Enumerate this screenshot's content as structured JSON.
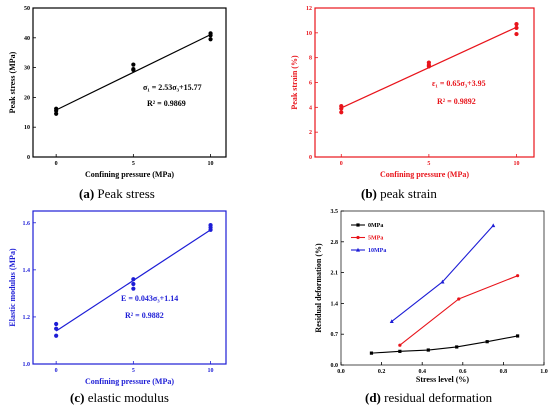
{
  "captions": [
    {
      "letter": "(a)",
      "text": "Peak stress"
    },
    {
      "letter": "(b)",
      "text": "peak strain"
    },
    {
      "letter": "(c)",
      "text": "elastic modulus"
    },
    {
      "letter": "(d)",
      "text": "residual deformation"
    }
  ],
  "chart_data": [
    {
      "type": "scatter",
      "color": "#000000",
      "xlabel": "Confining pressure (MPa)",
      "ylabel": "Peak stress (MPa)",
      "xticks": [
        "0",
        "5",
        "10"
      ],
      "yticks": [
        "0",
        "10",
        "20",
        "30",
        "40",
        "50"
      ],
      "xlim": [
        -1.5,
        11
      ],
      "ylim": [
        0,
        50
      ],
      "points": [
        [
          0,
          14.5
        ],
        [
          0,
          15.5
        ],
        [
          0,
          16.2
        ],
        [
          5,
          29.2
        ],
        [
          5,
          29.5
        ],
        [
          5,
          31.0
        ],
        [
          10,
          39.5
        ],
        [
          10,
          40.8
        ],
        [
          10,
          41.5
        ]
      ],
      "fit": {
        "slope": 2.53,
        "intercept": 15.77
      },
      "equation": "σ₁ = 2.53σ₃+15.77",
      "r2": "R² = 0.9869"
    },
    {
      "type": "scatter",
      "color": "#e8141b",
      "xlabel": "Confining pressure (MPa)",
      "ylabel": "Peak strain (%)",
      "xticks": [
        "0",
        "5",
        "10"
      ],
      "yticks": [
        "0",
        "2",
        "4",
        "6",
        "8",
        "10",
        "12"
      ],
      "xlim": [
        -1.5,
        11
      ],
      "ylim": [
        0,
        12
      ],
      "points": [
        [
          0,
          3.6
        ],
        [
          0,
          3.9
        ],
        [
          0,
          4.1
        ],
        [
          5,
          7.3
        ],
        [
          5,
          7.4
        ],
        [
          5,
          7.6
        ],
        [
          10,
          9.9
        ],
        [
          10,
          10.4
        ],
        [
          10,
          10.7
        ]
      ],
      "fit": {
        "slope": 0.65,
        "intercept": 3.95
      },
      "equation": "ε₁ = 0.65σ₃+3.95",
      "r2": "R² = 0.9892"
    },
    {
      "type": "scatter",
      "color": "#1d1dd6",
      "xlabel": "Confining pressure (MPa)",
      "ylabel": "Elastic modulus (MPa)",
      "xticks": [
        "0",
        "5",
        "10"
      ],
      "yticks": [
        "1.0",
        "1.2",
        "1.4",
        "1.6"
      ],
      "xlim": [
        -1.5,
        11
      ],
      "ylim": [
        1.0,
        1.65
      ],
      "points": [
        [
          0,
          1.12
        ],
        [
          0,
          1.15
        ],
        [
          0,
          1.17
        ],
        [
          5,
          1.32
        ],
        [
          5,
          1.34
        ],
        [
          5,
          1.36
        ],
        [
          10,
          1.57
        ],
        [
          10,
          1.58
        ],
        [
          10,
          1.59
        ]
      ],
      "fit": {
        "slope": 0.043,
        "intercept": 1.14
      },
      "equation": "E = 0.043σ₃+1.14",
      "r2": "R² = 0.9882"
    },
    {
      "type": "line",
      "xlabel": "Stress level (%)",
      "ylabel": "Residual deformation (%)",
      "xticks": [
        "0.0",
        "0.2",
        "0.4",
        "0.6",
        "0.8",
        "1.0"
      ],
      "yticks": [
        "0.0",
        "0.7",
        "1.4",
        "2.1",
        "2.8",
        "3.5"
      ],
      "xlim": [
        0,
        1.0
      ],
      "ylim": [
        0,
        3.5
      ],
      "legend_position": "top-left",
      "series": [
        {
          "name": "0MPa",
          "color": "#000000",
          "marker": "square",
          "x": [
            0.15,
            0.29,
            0.43,
            0.57,
            0.72,
            0.87
          ],
          "y": [
            0.27,
            0.31,
            0.34,
            0.41,
            0.53,
            0.66
          ]
        },
        {
          "name": "5MPa",
          "color": "#e8141b",
          "marker": "circle",
          "x": [
            0.29,
            0.58,
            0.87
          ],
          "y": [
            0.45,
            1.5,
            2.03
          ]
        },
        {
          "name": "10MPa",
          "color": "#1d1dd6",
          "marker": "triangle",
          "x": [
            0.25,
            0.5,
            0.75
          ],
          "y": [
            0.99,
            1.89,
            3.17
          ]
        }
      ]
    }
  ]
}
